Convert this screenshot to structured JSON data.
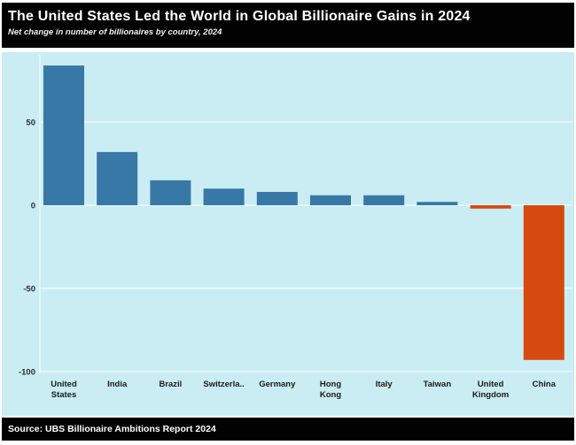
{
  "chart_data": {
    "type": "bar",
    "title": "The United States Led the World in Global Billionaire Gains in 2024",
    "subtitle": "Net change in number of billionaires by country, 2024",
    "source": "Source: UBS Billionaire Ambitions Report 2024",
    "categories": [
      "United States",
      "India",
      "Brazil",
      "Switzerla..",
      "Germany",
      "Hong Kong",
      "Italy",
      "Taiwan",
      "United Kingdom",
      "China"
    ],
    "values": [
      84,
      32,
      15,
      10,
      8,
      6,
      6,
      2,
      -2,
      -93
    ],
    "yticks": [
      50,
      0,
      -50,
      -100
    ],
    "ylim": [
      -105,
      92
    ],
    "xlabel": "",
    "ylabel": "",
    "grid": true,
    "legend": "none"
  },
  "colors": {
    "positive_bar": "#3878a6",
    "negative_bar": "#d64a0f",
    "chart_background": "#c9edf2",
    "gridline": "#e3f7f9",
    "axis_line": "#e3f7f9",
    "tick_text": "#2f2f2f",
    "category_text": "#1a1a1a",
    "header_background": "#020202",
    "header_text": "#ffffff"
  }
}
